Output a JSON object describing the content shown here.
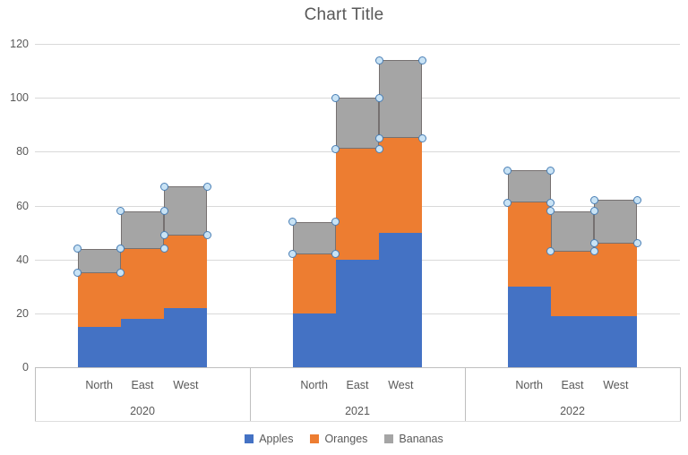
{
  "title": "Chart Title",
  "selection": {
    "selected_series": "Bananas"
  },
  "colors": {
    "apples": "#4472C4",
    "oranges": "#ED7D31",
    "bananas": "#A5A5A5",
    "gridline": "#D9D9D9",
    "axis_line": "#BFBFBF",
    "text": "#595959",
    "selection_border": "#767171",
    "handle_fill": "#C9E3F5",
    "handle_border": "#4A7FB5"
  },
  "chart_data": {
    "type": "bar",
    "stacked": true,
    "title": "Chart Title",
    "groups": [
      "2020",
      "2021",
      "2022"
    ],
    "categories_per_group": [
      "North",
      "East",
      "West"
    ],
    "series": [
      {
        "name": "Apples",
        "color": "#4472C4",
        "values": [
          15,
          18,
          22,
          20,
          40,
          50,
          30,
          19,
          19
        ]
      },
      {
        "name": "Oranges",
        "color": "#ED7D31",
        "values": [
          20,
          26,
          27,
          22,
          41,
          35,
          31,
          24,
          27
        ]
      },
      {
        "name": "Bananas",
        "color": "#A5A5A5",
        "values": [
          9,
          14,
          18,
          12,
          19,
          29,
          12,
          15,
          16
        ],
        "selected": true
      }
    ],
    "stack_totals": [
      44,
      58,
      67,
      54,
      100,
      114,
      73,
      58,
      62
    ],
    "y_ticks": [
      0,
      20,
      40,
      60,
      80,
      100,
      120
    ],
    "ylim": [
      0,
      120
    ],
    "grid": true,
    "legend_position": "bottom"
  },
  "legend": {
    "items": [
      {
        "label": "Apples",
        "color": "#4472C4"
      },
      {
        "label": "Oranges",
        "color": "#ED7D31"
      },
      {
        "label": "Bananas",
        "color": "#A5A5A5"
      }
    ]
  }
}
